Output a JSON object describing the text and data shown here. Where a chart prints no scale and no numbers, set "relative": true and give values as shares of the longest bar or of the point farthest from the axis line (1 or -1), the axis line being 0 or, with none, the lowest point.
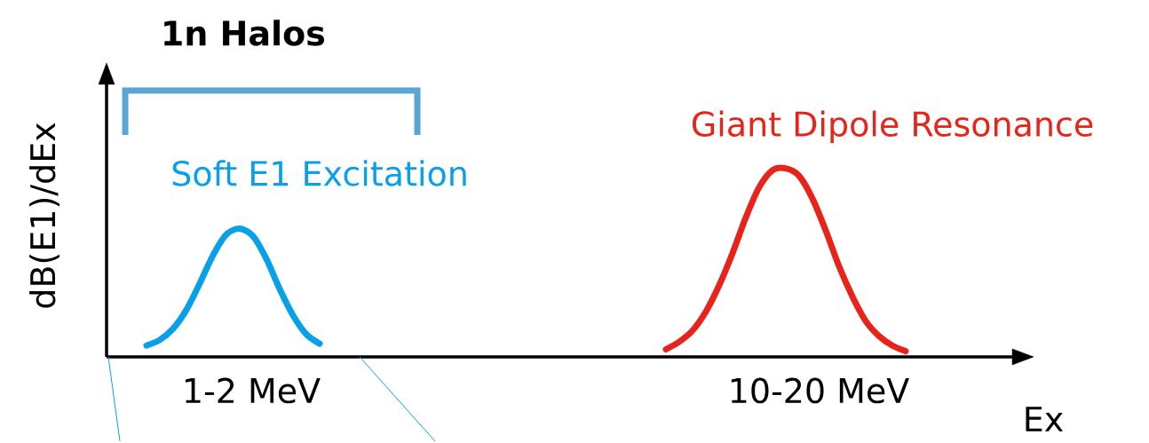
{
  "chart_data": {
    "type": "line",
    "title": "1n Halos",
    "ylabel": "dB(E1)/dEx",
    "xlabel": "Ex",
    "relative": true,
    "categories": [
      null,
      null,
      null,
      null,
      null,
      null,
      null,
      null,
      null,
      null,
      null,
      null,
      null,
      null,
      null,
      null,
      null,
      null,
      null,
      null,
      null,
      null,
      null,
      null,
      null,
      null,
      null,
      null,
      null,
      null,
      null,
      null,
      null,
      null,
      null,
      null,
      null,
      null,
      null,
      null,
      null,
      null,
      null,
      null,
      null,
      null,
      null,
      null,
      null,
      null,
      null,
      null,
      null,
      null,
      null,
      null,
      null,
      null,
      null,
      null,
      null,
      null,
      null,
      null,
      null,
      null,
      null,
      null,
      null
    ],
    "series": [
      {
        "color": "#0aa0e8",
        "values": [
          null,
          null,
          null,
          0.06,
          0.09,
          0.15,
          0.25,
          0.39,
          0.54,
          0.65,
          0.68,
          0.64,
          0.52,
          0.36,
          0.22,
          0.12,
          0.07,
          null,
          null,
          null,
          null,
          null,
          null,
          null,
          null,
          null,
          null,
          null,
          null,
          null,
          null,
          null,
          null,
          null,
          null,
          null,
          null,
          null,
          null,
          null,
          null,
          null,
          null,
          null,
          null,
          null,
          null,
          null,
          null,
          null,
          null,
          null,
          null,
          null,
          null,
          null,
          null,
          null,
          null,
          null,
          null,
          null,
          null,
          null,
          null,
          null,
          null,
          null,
          null
        ]
      },
      {
        "color": "#e8231a",
        "values": [
          null,
          null,
          null,
          null,
          null,
          null,
          null,
          null,
          null,
          null,
          null,
          null,
          null,
          null,
          null,
          null,
          null,
          null,
          null,
          null,
          null,
          null,
          null,
          null,
          null,
          null,
          null,
          null,
          null,
          null,
          null,
          null,
          null,
          null,
          null,
          null,
          null,
          null,
          null,
          null,
          null,
          null,
          0.04,
          0.08,
          0.14,
          0.24,
          0.38,
          0.55,
          0.74,
          0.9,
          0.99,
          1.0,
          0.96,
          0.84,
          0.67,
          0.48,
          0.32,
          0.19,
          0.11,
          0.06,
          0.03,
          null,
          null,
          null,
          null,
          null,
          null,
          null,
          null
        ]
      }
    ],
    "annotations": [
      "Soft E1 Excitation",
      "Giant Dipole Resonance",
      "1-2 MeV",
      "10-20 MeV"
    ]
  }
}
